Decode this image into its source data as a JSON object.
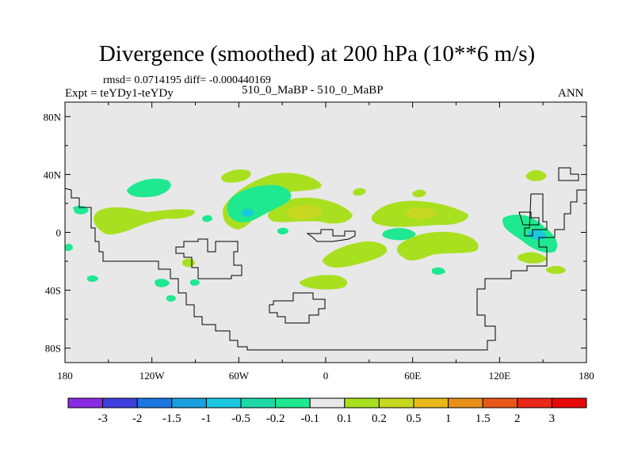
{
  "chart_data": {
    "type": "heatmap",
    "title": "Divergence (smoothed) at 200 hPa (10**6 m/s)",
    "stats_line": "rmsd= 0.0714195 diff= -0.000440169",
    "left_label": "Expt = teYDy1-teYDy",
    "center_label": "510_0_MaBP - 510_0_MaBP",
    "right_label": "ANN",
    "xlim": [
      -180,
      180
    ],
    "ylim": [
      -90,
      90
    ],
    "x_ticks": [
      {
        "value": -180,
        "label": "180"
      },
      {
        "value": -120,
        "label": "120W"
      },
      {
        "value": -60,
        "label": "60W"
      },
      {
        "value": 0,
        "label": "0"
      },
      {
        "value": 60,
        "label": "60E"
      },
      {
        "value": 120,
        "label": "120E"
      },
      {
        "value": 180,
        "label": "180"
      }
    ],
    "y_ticks": [
      {
        "value": 80,
        "label": "80N"
      },
      {
        "value": 40,
        "label": "40N"
      },
      {
        "value": 0,
        "label": "0"
      },
      {
        "value": -40,
        "label": "40S"
      },
      {
        "value": -80,
        "label": "80S"
      }
    ],
    "colorbar": {
      "labels": [
        "-3",
        "-2",
        "-1.5",
        "-1",
        "-0.5",
        "-0.2",
        "-0.1",
        "0.1",
        "0.2",
        "0.5",
        "1",
        "1.5",
        "2",
        "3"
      ],
      "colors": [
        "#8a2be2",
        "#3f3fe0",
        "#1a78e0",
        "#1aa0e0",
        "#1ac8e0",
        "#1ed8a8",
        "#1ee890",
        "#e8e8e8",
        "#a8e020",
        "#c8d820",
        "#e8b818",
        "#e89018",
        "#e85818",
        "#e82818",
        "#e80808"
      ]
    },
    "background_color": "#e8e8e8",
    "contour_regions": [
      {
        "name": "positive-anomaly",
        "color": "#a8e020"
      },
      {
        "name": "negative-anomaly",
        "color": "#1ee890"
      },
      {
        "name": "strong-positive",
        "color": "#c8d820"
      },
      {
        "name": "strong-negative",
        "color": "#1ac8e0"
      }
    ]
  }
}
